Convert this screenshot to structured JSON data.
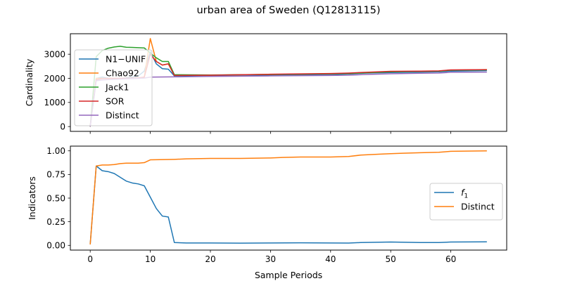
{
  "chart_data": [
    {
      "type": "line",
      "title": "urban area of Sweden (Q12813115)",
      "xlabel": "",
      "ylabel": "Cardinality",
      "xlim": [
        -3.3,
        69.3
      ],
      "ylim": [
        -200,
        3850
      ],
      "xticks": [
        0,
        10,
        20,
        30,
        40,
        50,
        60
      ],
      "yticks": [
        0,
        1000,
        2000,
        3000
      ],
      "legend": "upper-left",
      "series": [
        {
          "name": "N1−UNIF",
          "color": "#1f77b4",
          "x": [
            0,
            1,
            2,
            3,
            4,
            5,
            6,
            7,
            8,
            9,
            10,
            11,
            12,
            13,
            14,
            20,
            30,
            40,
            43,
            46,
            50,
            55,
            58,
            60,
            66
          ],
          "y": [
            0,
            2000,
            2050,
            2000,
            1980,
            1990,
            2020,
            2050,
            2100,
            2300,
            3100,
            2600,
            2400,
            2380,
            2100,
            2120,
            2140,
            2160,
            2180,
            2220,
            2240,
            2260,
            2270,
            2300,
            2320
          ]
        },
        {
          "name": "Chao92",
          "color": "#ff7f0e",
          "x": [
            0,
            1,
            2,
            3,
            4,
            5,
            6,
            7,
            8,
            9,
            10,
            11,
            12,
            13,
            14,
            20,
            30,
            40,
            43,
            46,
            50,
            55,
            58,
            60,
            66
          ],
          "y": [
            0,
            2000,
            2000,
            1990,
            1990,
            1995,
            2000,
            2005,
            2010,
            2050,
            3650,
            2700,
            2550,
            2600,
            2130,
            2130,
            2160,
            2190,
            2200,
            2240,
            2280,
            2290,
            2300,
            2340,
            2360
          ]
        },
        {
          "name": "Jack1",
          "color": "#2ca02c",
          "x": [
            0,
            1,
            2,
            3,
            4,
            5,
            6,
            7,
            8,
            9,
            10,
            11,
            12,
            13,
            14,
            20,
            30,
            40,
            43,
            46,
            50,
            55,
            58,
            60,
            66
          ],
          "y": [
            0,
            2900,
            3150,
            3250,
            3300,
            3330,
            3290,
            3280,
            3270,
            3260,
            3050,
            2850,
            2700,
            2700,
            2150,
            2140,
            2160,
            2190,
            2200,
            2230,
            2270,
            2290,
            2300,
            2340,
            2350
          ]
        },
        {
          "name": "SOR",
          "color": "#d62728",
          "x": [
            0,
            1,
            2,
            3,
            4,
            5,
            6,
            7,
            8,
            9,
            10,
            11,
            12,
            13,
            14,
            20,
            30,
            40,
            43,
            46,
            50,
            55,
            58,
            60,
            66
          ],
          "y": [
            0,
            1950,
            1990,
            2000,
            2000,
            2000,
            2000,
            2010,
            2020,
            2050,
            3000,
            2700,
            2550,
            2600,
            2120,
            2130,
            2170,
            2200,
            2220,
            2250,
            2290,
            2300,
            2310,
            2350,
            2360
          ]
        },
        {
          "name": "Distinct",
          "color": "#9467bd",
          "x": [
            0,
            1,
            2,
            3,
            4,
            5,
            6,
            7,
            8,
            9,
            10,
            14,
            20,
            30,
            40,
            43,
            46,
            50,
            55,
            58,
            60,
            66
          ],
          "y": [
            0,
            1900,
            1930,
            1950,
            1960,
            1970,
            1980,
            1990,
            2000,
            2010,
            2050,
            2060,
            2080,
            2100,
            2120,
            2130,
            2160,
            2190,
            2210,
            2220,
            2250,
            2260
          ]
        }
      ]
    },
    {
      "type": "line",
      "title": "",
      "xlabel": "Sample Periods",
      "ylabel": "Indicators",
      "xlim": [
        -3.3,
        69.3
      ],
      "ylim": [
        -0.05,
        1.05
      ],
      "xticks": [
        0,
        10,
        20,
        30,
        40,
        50,
        60
      ],
      "yticks": [
        "0.00",
        "0.25",
        "0.50",
        "0.75",
        "1.00"
      ],
      "legend": "center-right",
      "series": [
        {
          "name": "f1",
          "color": "#1f77b4",
          "x": [
            0,
            1,
            2,
            3,
            4,
            5,
            6,
            7,
            8,
            9,
            10,
            11,
            12,
            13,
            14,
            16,
            20,
            25,
            30,
            35,
            40,
            43,
            45,
            50,
            55,
            58,
            60,
            66
          ],
          "y": [
            0.01,
            0.84,
            0.79,
            0.78,
            0.76,
            0.72,
            0.68,
            0.66,
            0.65,
            0.63,
            0.51,
            0.39,
            0.31,
            0.3,
            0.03,
            0.025,
            0.025,
            0.023,
            0.025,
            0.027,
            0.025,
            0.024,
            0.03,
            0.035,
            0.03,
            0.03,
            0.035,
            0.037
          ]
        },
        {
          "name": "Distinct",
          "color": "#ff7f0e",
          "x": [
            0,
            1,
            2,
            3,
            4,
            5,
            6,
            7,
            8,
            9,
            10,
            14,
            16,
            20,
            25,
            30,
            32,
            35,
            40,
            43,
            45,
            48,
            50,
            52,
            55,
            58,
            59,
            60,
            66
          ],
          "y": [
            0.01,
            0.84,
            0.85,
            0.85,
            0.855,
            0.865,
            0.87,
            0.87,
            0.87,
            0.875,
            0.905,
            0.91,
            0.915,
            0.92,
            0.92,
            0.925,
            0.93,
            0.935,
            0.935,
            0.94,
            0.955,
            0.965,
            0.97,
            0.975,
            0.98,
            0.985,
            0.99,
            0.995,
            1.0
          ]
        }
      ]
    }
  ]
}
